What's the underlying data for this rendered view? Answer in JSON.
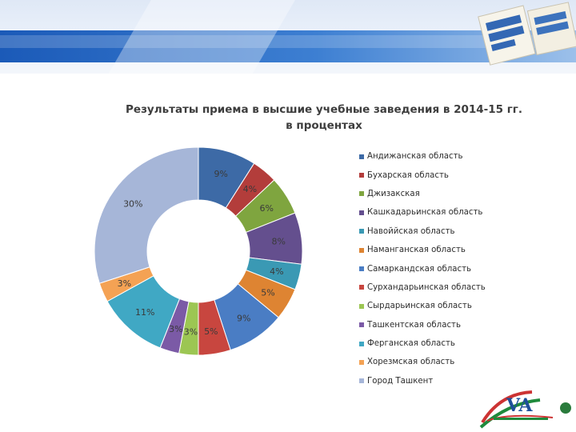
{
  "chart_data": {
    "type": "donut",
    "title": "Результаты приема в высшие учебные заведения в 2014-15 гг.",
    "subtitle": "в процентах",
    "legend_position": "right",
    "categories": [
      "Андижанская область",
      "Бухарская область",
      "Джизакская",
      "Кашкадарьинская область",
      "Навоййская область",
      "Наманганская область",
      "Самаркандская область",
      "Сурхандарьинская область",
      "Сырдарьинская область",
      "Ташкентская область",
      "Ферганская область",
      "Хорезмская область",
      "Город Ташкент"
    ],
    "values": [
      9,
      4,
      6,
      8,
      4,
      5,
      9,
      5,
      3,
      3,
      11,
      3,
      30
    ],
    "data_labels": [
      "9%",
      "4%",
      "6%",
      "8%",
      "4%",
      "5%",
      "9%",
      "5%",
      "3%",
      "3%",
      "11%",
      "3%",
      "30%"
    ],
    "colors": [
      "#3d6aa6",
      "#b33d3b",
      "#7fa53f",
      "#644f8e",
      "#3a99b4",
      "#de8432",
      "#4a7dc4",
      "#c8463f",
      "#9cc653",
      "#7b5aa6",
      "#40a8c4",
      "#f4a254",
      "#a6b6d8"
    ]
  }
}
